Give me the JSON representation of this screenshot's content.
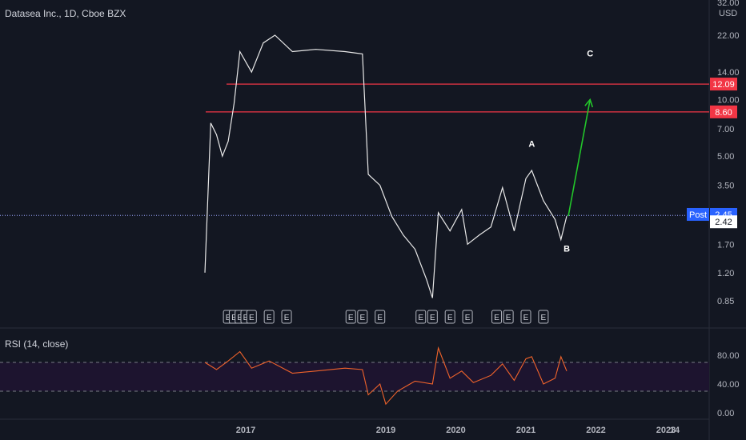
{
  "header": {
    "title": "Datasea Inc., 1D, Cboe BZX"
  },
  "rsi": {
    "title": "RSI (14, close)",
    "ticks": [
      "80.00",
      "40.00",
      "0.00"
    ]
  },
  "colors": {
    "background": "#131722",
    "price_line": "#e8e8e8",
    "level": "#f23645",
    "arrow": "#22c52a",
    "rsi_line": "#f0632b",
    "rsi_band": "#1d142f",
    "dotted": "#9aa5ff"
  },
  "chart_data": [
    {
      "type": "line",
      "title": "Datasea Inc., 1D, Cboe BZX",
      "unit": "USD",
      "y_scale": "log",
      "y_ticks": [
        "32.00",
        "22.00",
        "14.00",
        "10.00",
        "7.00",
        "5.00",
        "3.50",
        "1.70",
        "1.20",
        "0.85"
      ],
      "x_ticks": [
        "2017",
        "2019",
        "2020",
        "2021",
        "2022",
        "2023",
        "14"
      ],
      "series": [
        {
          "values": [
            [
              "2016-06",
              1.2
            ],
            [
              "2016-07",
              7.5
            ],
            [
              "2016-08",
              6.5
            ],
            [
              "2016-09",
              5.0
            ],
            [
              "2016-10",
              6.0
            ],
            [
              "2016-11",
              9.5
            ],
            [
              "2016-12",
              18.0
            ],
            [
              "2017-02",
              14.0
            ],
            [
              "2017-04",
              20.0
            ],
            [
              "2017-06",
              22.0
            ],
            [
              "2017-09",
              18.0
            ],
            [
              "2018-01",
              18.5
            ],
            [
              "2018-06",
              18.0
            ],
            [
              "2018-09",
              17.5
            ],
            [
              "2018-10",
              4.0
            ],
            [
              "2018-12",
              3.5
            ],
            [
              "2019-02",
              2.4
            ],
            [
              "2019-04",
              1.9
            ],
            [
              "2019-06",
              1.6
            ],
            [
              "2019-08",
              1.1
            ],
            [
              "2019-09",
              0.88
            ],
            [
              "2019-10",
              2.5
            ],
            [
              "2019-12",
              2.0
            ],
            [
              "2020-02",
              2.6
            ],
            [
              "2020-03",
              1.7
            ],
            [
              "2020-05",
              1.9
            ],
            [
              "2020-07",
              2.1
            ],
            [
              "2020-09",
              3.4
            ],
            [
              "2020-11",
              2.0
            ],
            [
              "2021-01",
              3.8
            ],
            [
              "2021-02",
              4.2
            ],
            [
              "2021-04",
              2.9
            ],
            [
              "2021-06",
              2.3
            ],
            [
              "2021-07",
              1.8
            ],
            [
              "2021-08",
              2.4
            ]
          ]
        }
      ],
      "levels": [
        {
          "value": 12.09,
          "label": "12.09"
        },
        {
          "value": 8.6,
          "label": "8.60"
        }
      ],
      "price_tags": [
        {
          "text": "Post",
          "value": 2.45,
          "label": "2.45"
        },
        {
          "value": 2.42,
          "label": "2.42"
        }
      ],
      "projection": {
        "from": [
          "2021-08",
          2.4
        ],
        "to": [
          "2021-12",
          10.0
        ]
      },
      "annotations": [
        {
          "text": "A",
          "at": [
            "2021-02",
            5.6
          ]
        },
        {
          "text": "B",
          "at": [
            "2021-08",
            1.55
          ]
        },
        {
          "text": "C",
          "at": [
            "2021-12",
            17.0
          ]
        }
      ],
      "event_markers": {
        "label": "E",
        "dates": [
          "2016-10",
          "2016-11",
          "2016-12",
          "2017-01",
          "2017-02",
          "2017-05",
          "2017-08",
          "2018-07",
          "2018-09",
          "2018-12",
          "2019-07",
          "2019-09",
          "2019-12",
          "2020-03",
          "2020-08",
          "2020-10",
          "2021-01",
          "2021-04"
        ]
      }
    },
    {
      "type": "line",
      "title": "RSI (14, close)",
      "ylim": [
        0,
        100
      ],
      "bands": [
        30,
        70
      ],
      "series": [
        {
          "values": [
            [
              "2016-06",
              70
            ],
            [
              "2016-08",
              60
            ],
            [
              "2016-10",
              72
            ],
            [
              "2016-12",
              85
            ],
            [
              "2017-02",
              62
            ],
            [
              "2017-05",
              72
            ],
            [
              "2017-09",
              55
            ],
            [
              "2018-01",
              58
            ],
            [
              "2018-06",
              62
            ],
            [
              "2018-09",
              60
            ],
            [
              "2018-10",
              25
            ],
            [
              "2018-12",
              40
            ],
            [
              "2019-01",
              12
            ],
            [
              "2019-03",
              30
            ],
            [
              "2019-06",
              44
            ],
            [
              "2019-09",
              40
            ],
            [
              "2019-10",
              90
            ],
            [
              "2019-12",
              48
            ],
            [
              "2020-02",
              58
            ],
            [
              "2020-04",
              42
            ],
            [
              "2020-07",
              52
            ],
            [
              "2020-09",
              68
            ],
            [
              "2020-11",
              45
            ],
            [
              "2021-01",
              75
            ],
            [
              "2021-02",
              78
            ],
            [
              "2021-04",
              40
            ],
            [
              "2021-06",
              48
            ],
            [
              "2021-07",
              78
            ],
            [
              "2021-08",
              58
            ]
          ]
        }
      ]
    }
  ]
}
